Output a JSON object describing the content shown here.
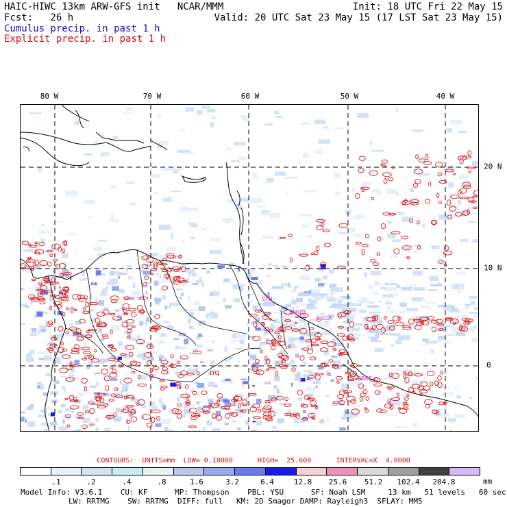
{
  "header": {
    "model_title": "HAIC-HIWC 13km ARW-GFS init   NCAR/MMM",
    "fcst_label": "Fcst:   26 h",
    "init": "Init: 18 UTC Fri 22 May 15",
    "valid": "Valid: 20 UTC Sat 23 May 15 (17 LST Sat 23 May 15)",
    "cumulus_label": "Cumulus precip. in past 1 h",
    "explicit_label": "Explicit precip. in past 1 h"
  },
  "map": {
    "lon_labels": [
      "80 W",
      "70 W",
      "60 W",
      "50 W",
      "40 W"
    ],
    "lat_labels": [
      "20 N",
      "10 N",
      "0"
    ],
    "station_labels": [
      "SYB",
      "SMUD",
      "SOCA",
      "SBBE",
      "nq"
    ],
    "colors": {
      "cumulus": "#1010d0",
      "explicit": "#e01010",
      "coast": "#000000",
      "station": "#cc33cc"
    }
  },
  "contours_line": "CONTOURS:  UNITS=mm  LOW= 0.10000      HIGH=  25.600      INTERVAL=X  4.0000",
  "colorbar": {
    "colors": [
      "#ffffff",
      "#e8f0fb",
      "#d2e3f7",
      "#c8ecf5",
      "#e4f5f0",
      "#b8c8ee",
      "#98a8ec",
      "#6a7af0",
      "#1a1ae8",
      "#f4d0d8",
      "#f090b8",
      "#d8d8d8",
      "#a0a0a0",
      "#404040",
      "#d8b8f8"
    ],
    "ticks": [
      ".1",
      ".2",
      ".4",
      ".8",
      "1.6",
      "3.2",
      "6.4",
      "12.8",
      "25.6",
      "51.2",
      "102.4",
      "204.8"
    ],
    "units": "mm"
  },
  "model_info": {
    "line1": "Model Info: V3.6.1    CU: KF      MP: Thompson    PBL: YSU      SF: Noah LSM     13 km   51 levels   60 sec",
    "line2": "LW: RRTMG    SW: RRTMG  DIFF: full   KM: 2D Smagor DAMP: Rayleigh3  SFLAY: MM5"
  }
}
